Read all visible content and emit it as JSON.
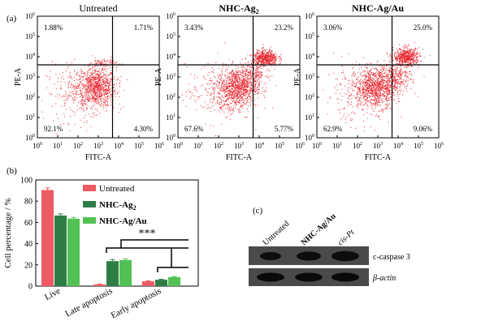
{
  "panel_labels": {
    "a": "(a)",
    "b": "(b)",
    "c": "(c)"
  },
  "subscript_2": "2",
  "flow": {
    "x_axis_label": "FITC-A",
    "y_axis_label": "PE-A",
    "tick_base": "10",
    "tick_exponents": [
      "0",
      "1",
      "2",
      "3",
      "4",
      "5",
      "6"
    ],
    "plots": [
      {
        "title": "Untreated",
        "title_bold": false,
        "title_sub": "",
        "quadrants": {
          "upper_left": "1.88%",
          "upper_right": "1.71%",
          "lower_left": "92.1%",
          "lower_right": "4.30%"
        }
      },
      {
        "title": "NHC-Ag",
        "title_bold": true,
        "title_sub": "2",
        "quadrants": {
          "upper_left": "3.43%",
          "upper_right": "23.2%",
          "lower_left": "67.6%",
          "lower_right": "5.77%"
        }
      },
      {
        "title": "NHC-Ag/Au",
        "title_bold": true,
        "title_sub": "",
        "quadrants": {
          "upper_left": "3.06%",
          "upper_right": "25.0%",
          "lower_left": "62.9%",
          "lower_right": "9.06%"
        }
      }
    ]
  },
  "bar": {
    "significance": "***",
    "colors": [
      "#ee5a64",
      "#2e7d46",
      "#52c155"
    ]
  },
  "western": {
    "lane_labels": [
      "Untreated",
      "NHC-Ag/Au",
      "cis-Pt"
    ],
    "band_labels": [
      "c-caspase 3",
      "β-actin"
    ]
  },
  "chart_data": [
    {
      "type": "bar",
      "title": "",
      "xlabel": "",
      "ylabel": "Cell percentage / %",
      "ylim": [
        0,
        100
      ],
      "yticks": [
        0,
        20,
        40,
        60,
        80,
        100
      ],
      "categories": [
        "Live",
        "Late apoptosis",
        "Early apoptosis"
      ],
      "series": [
        {
          "name": "Untreated",
          "values": [
            90.5,
            1.5,
            4.5
          ],
          "errors": [
            2,
            0.5,
            0.5
          ]
        },
        {
          "name": "NHC-Ag",
          "name_sub": "2",
          "values": [
            66.5,
            23.5,
            6.0
          ],
          "errors": [
            1.5,
            1.5,
            0.5
          ]
        },
        {
          "name": "NHC-Ag/Au",
          "values": [
            63.5,
            24.5,
            8.5
          ],
          "errors": [
            1.2,
            1.0,
            0.6
          ]
        }
      ],
      "legend_position": "top-right",
      "grid": false
    }
  ]
}
